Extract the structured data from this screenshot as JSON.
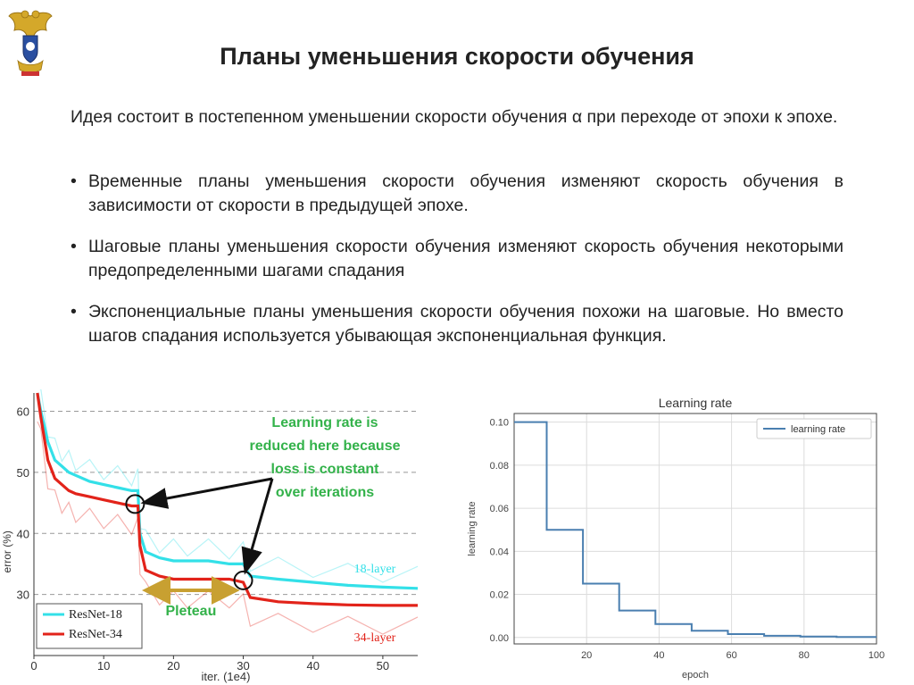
{
  "slide": {
    "title": "Планы уменьшения скорости обучения",
    "intro": "Идея состоит в постепенном уменьшении скорости обучения α при переходе от эпохи к эпохе.",
    "bullets": [
      "Временные планы уменьшения скорости обучения изменяют скорость обучения в зависимости от скорости в предыдущей эпохе.",
      "Шаговые планы уменьшения скорости обучения изменяют скорость обучения некоторыми предопределенными шагами спадания",
      "Экспоненциальные планы уменьшения скорости обучения похожи на шаговые. Но вместо шагов спадания используется убывающая экспоненциальная функция."
    ]
  },
  "colors": {
    "resnet18": "#33e0e8",
    "resnet34": "#e2231a",
    "annotation_green": "#33b24a",
    "pleteau_arrow": "#c8a031",
    "lr_line": "#4a7fb0"
  },
  "chart_data": [
    {
      "type": "line",
      "xlabel": "iter. (1e4)",
      "ylabel": "error (%)",
      "xlim": [
        0,
        55
      ],
      "ylim": [
        20,
        63
      ],
      "xticks": [
        0,
        10,
        20,
        30,
        40,
        50
      ],
      "yticks": [
        30,
        40,
        50,
        60
      ],
      "grid": "horizontal dashed",
      "legend_position": "bottom-left",
      "series": [
        {
          "name": "ResNet-18",
          "x": [
            0.5,
            1,
            2,
            3,
            4,
            5,
            6,
            8,
            10,
            12,
            14,
            14.9,
            15.2,
            16,
            18,
            20,
            22,
            25,
            28,
            30,
            31,
            35,
            40,
            45,
            50,
            55
          ],
          "values": [
            63,
            60,
            55,
            52,
            51,
            50,
            49.5,
            48.5,
            48,
            47.5,
            47,
            47,
            40,
            37,
            36,
            35.5,
            35.5,
            35.5,
            35,
            35,
            33,
            32.5,
            32,
            31.5,
            31.2,
            31
          ]
        },
        {
          "name": "ResNet-34",
          "x": [
            0.5,
            1,
            2,
            3,
            4,
            5,
            6,
            8,
            10,
            12,
            14,
            14.9,
            15.2,
            16,
            18,
            20,
            22,
            25,
            28,
            30,
            31,
            35,
            40,
            45,
            50,
            55
          ],
          "values": [
            63,
            59,
            52,
            49,
            48,
            47,
            46.5,
            46,
            45.5,
            45,
            44.5,
            44.5,
            38,
            34,
            33,
            32.5,
            32.5,
            32.5,
            32.5,
            32,
            29.5,
            28.8,
            28.5,
            28.3,
            28.2,
            28.2
          ]
        }
      ],
      "annotations": {
        "callout": "Learning rate is reduced here because loss is constant over iterations",
        "plateau": "Pleteau",
        "label_18": "18-layer",
        "label_34": "34-layer"
      }
    },
    {
      "type": "line",
      "title": "Learning rate",
      "xlabel": "epoch",
      "ylabel": "learning rate",
      "xlim": [
        0,
        100
      ],
      "ylim": [
        -0.003,
        0.104
      ],
      "xticks": [
        20,
        40,
        60,
        80,
        100
      ],
      "yticks": [
        0.0,
        0.02,
        0.04,
        0.06,
        0.08,
        0.1
      ],
      "xtick_labels": [
        "20",
        "40",
        "60",
        "80",
        "100"
      ],
      "ytick_labels": [
        "0.00",
        "0.02",
        "0.04",
        "0.06",
        "0.08",
        "0.10"
      ],
      "grid": "on",
      "legend_position": "top-right",
      "series": [
        {
          "name": "learning rate",
          "x": [
            0,
            9,
            9,
            19,
            19,
            29,
            29,
            39,
            39,
            49,
            49,
            59,
            59,
            69,
            69,
            79,
            79,
            89,
            89,
            100
          ],
          "values": [
            0.1,
            0.1,
            0.05,
            0.05,
            0.025,
            0.025,
            0.0125,
            0.0125,
            0.00625,
            0.00625,
            0.003125,
            0.003125,
            0.0015625,
            0.0015625,
            0.00078,
            0.00078,
            0.00039,
            0.00039,
            0.0002,
            0.0002
          ]
        }
      ]
    }
  ]
}
